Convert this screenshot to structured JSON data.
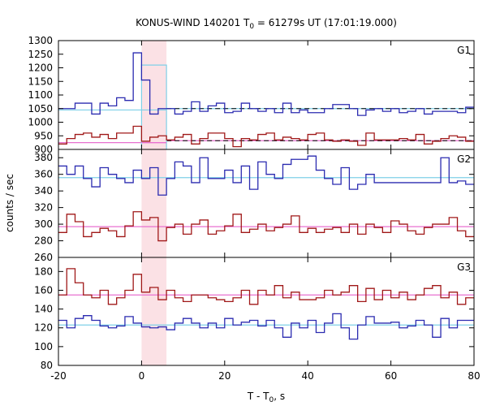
{
  "title": {
    "main": "KONUS-WIND 140201 T",
    "sub": "0",
    "rest": " = 61279s UT (17:01:19.000)"
  },
  "xlabel": {
    "main": "T - T",
    "sub": "0",
    "rest": ", s"
  },
  "ylabel": "counts / sec",
  "colors": {
    "blue": "#2b2bb0",
    "red": "#a01818",
    "cyan": "#7fd0e8",
    "pink": "#e870d0",
    "highlight": "#f8c8d0",
    "frame": "#000000"
  },
  "chart_data": {
    "type": "line",
    "xlim": [
      -20,
      80
    ],
    "xticks": [
      -20,
      0,
      20,
      40,
      60,
      80
    ],
    "highlight": {
      "x0": 0,
      "x1": 6
    },
    "bin_width": 2,
    "bin_start": -20,
    "panels": [
      {
        "label": "G1",
        "ylim": [
          900,
          1300
        ],
        "yticks": [
          900,
          950,
          1000,
          1050,
          1100,
          1150,
          1200,
          1250,
          1300
        ],
        "series": [
          {
            "name": "G1 blue",
            "color": "blue",
            "values": [
              1050,
              1050,
              1070,
              1070,
              1030,
              1070,
              1060,
              1090,
              1080,
              1255,
              1155,
              1030,
              1050,
              1050,
              1030,
              1040,
              1075,
              1040,
              1060,
              1070,
              1035,
              1040,
              1070,
              1050,
              1040,
              1050,
              1035,
              1070,
              1035,
              1045,
              1035,
              1035,
              1050,
              1065,
              1065,
              1050,
              1025,
              1045,
              1050,
              1040,
              1050,
              1035,
              1040,
              1050,
              1030,
              1040,
              1040,
              1040,
              1035,
              1055
            ]
          },
          {
            "name": "G1 red",
            "color": "red",
            "values": [
              920,
              940,
              955,
              960,
              945,
              955,
              940,
              960,
              960,
              985,
              930,
              945,
              950,
              935,
              945,
              955,
              920,
              940,
              960,
              960,
              940,
              910,
              940,
              935,
              955,
              960,
              935,
              945,
              940,
              935,
              955,
              960,
              935,
              930,
              935,
              930,
              915,
              960,
              935,
              935,
              935,
              940,
              935,
              955,
              920,
              930,
              940,
              950,
              945,
              930
            ]
          }
        ],
        "overlay": {
          "bar_x0": 0,
          "bar_x1": 6,
          "bar_value": 1210
        },
        "fits": [
          {
            "color": "cyan",
            "value": 1045,
            "dashed_from": 6,
            "dashed_value": 1050
          },
          {
            "color": "pink",
            "value": 925,
            "dashed_from": 6,
            "dashed_value": 932
          }
        ]
      },
      {
        "label": "G2",
        "ylim": [
          260,
          390
        ],
        "yticks": [
          260,
          280,
          300,
          320,
          340,
          360,
          380
        ],
        "series": [
          {
            "name": "G2 blue",
            "color": "blue",
            "values": [
              370,
              360,
              370,
              355,
              345,
              368,
              360,
              355,
              350,
              365,
              355,
              368,
              335,
              355,
              375,
              370,
              350,
              380,
              355,
              355,
              365,
              350,
              370,
              342,
              375,
              360,
              355,
              372,
              378,
              378,
              382,
              365,
              355,
              348,
              368,
              342,
              348,
              360,
              350,
              350,
              350,
              350,
              350,
              350,
              350,
              350,
              380,
              350,
              352,
              348
            ]
          },
          {
            "name": "G2 red",
            "color": "red",
            "values": [
              290,
              312,
              303,
              285,
              290,
              295,
              292,
              285,
              298,
              315,
              305,
              308,
              280,
              296,
              300,
              288,
              300,
              305,
              288,
              292,
              298,
              312,
              290,
              294,
              300,
              292,
              296,
              300,
              310,
              290,
              295,
              290,
              294,
              296,
              290,
              300,
              288,
              300,
              296,
              290,
              304,
              300,
              292,
              288,
              296,
              300,
              300,
              308,
              292,
              285
            ]
          }
        ],
        "fits": [
          {
            "color": "cyan",
            "value": 356
          },
          {
            "color": "pink",
            "value": 297
          }
        ]
      },
      {
        "label": "G3",
        "ylim": [
          80,
          195
        ],
        "yticks": [
          80,
          100,
          120,
          140,
          160,
          180
        ],
        "series": [
          {
            "name": "G3 blue",
            "color": "blue",
            "values": [
              128,
              120,
              130,
              133,
              128,
              122,
              120,
              122,
              132,
              125,
              121,
              120,
              121,
              118,
              125,
              130,
              125,
              120,
              125,
              120,
              130,
              123,
              126,
              128,
              122,
              128,
              120,
              110,
              125,
              120,
              128,
              115,
              125,
              135,
              120,
              108,
              123,
              132,
              125,
              125,
              126,
              120,
              122,
              128,
              123,
              110,
              130,
              120,
              128,
              128
            ]
          },
          {
            "name": "G3 red",
            "color": "red",
            "values": [
              155,
              183,
              168,
              155,
              152,
              160,
              145,
              152,
              160,
              177,
              158,
              163,
              150,
              160,
              152,
              148,
              155,
              155,
              152,
              150,
              148,
              152,
              160,
              145,
              160,
              155,
              165,
              152,
              158,
              150,
              150,
              152,
              160,
              155,
              158,
              165,
              148,
              162,
              150,
              160,
              152,
              158,
              150,
              155,
              162,
              165,
              152,
              158,
              145,
              152
            ]
          }
        ],
        "fits": [
          {
            "color": "cyan",
            "value": 123
          },
          {
            "color": "pink",
            "value": 155
          }
        ]
      }
    ]
  }
}
